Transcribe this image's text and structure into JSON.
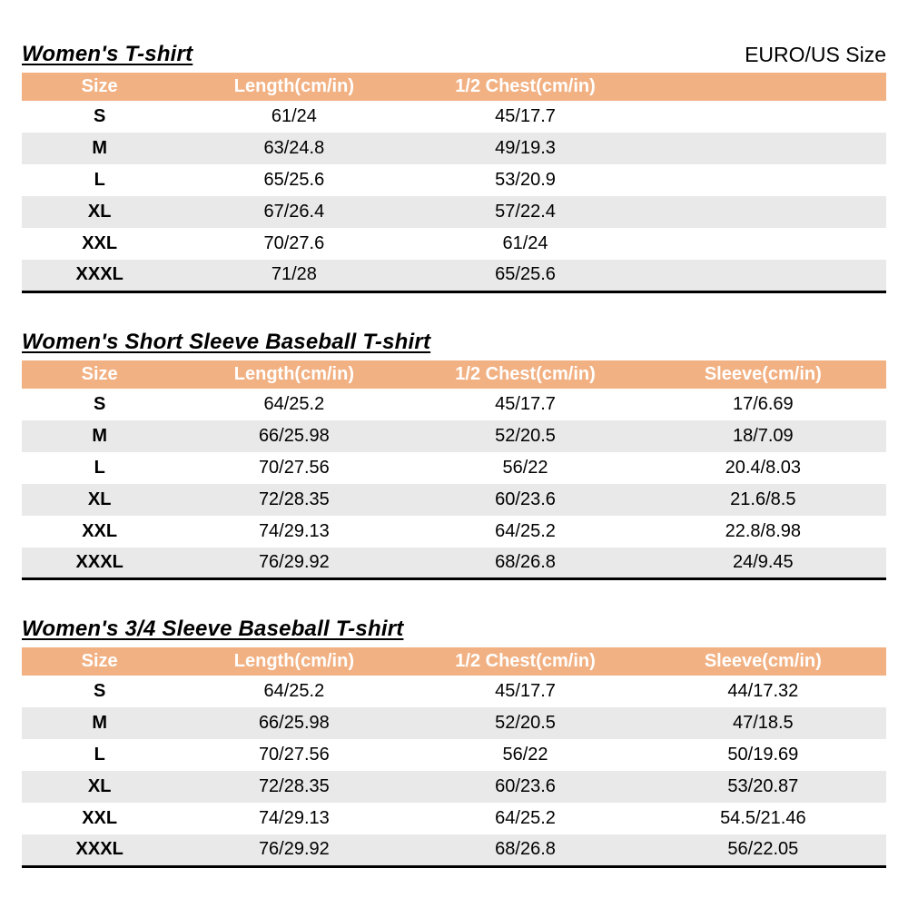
{
  "header": {
    "size_standard": "EURO/US Size"
  },
  "colors": {
    "header_bg": "#F2B183",
    "header_text": "#FFFFFF",
    "alt_row_bg": "#E9E9E9",
    "table_border": "#000000"
  },
  "tables": [
    {
      "title": "Women's T-shirt",
      "columns": [
        "Size",
        "Length(cm/in)",
        "1/2 Chest(cm/in)",
        ""
      ],
      "rows": [
        [
          "S",
          "61/24",
          "45/17.7",
          ""
        ],
        [
          "M",
          "63/24.8",
          "49/19.3",
          ""
        ],
        [
          "L",
          "65/25.6",
          "53/20.9",
          ""
        ],
        [
          "XL",
          "67/26.4",
          "57/22.4",
          ""
        ],
        [
          "XXL",
          "70/27.6",
          "61/24",
          ""
        ],
        [
          "XXXL",
          "71/28",
          "65/25.6",
          ""
        ]
      ]
    },
    {
      "title": "Women's Short Sleeve Baseball T-shirt",
      "columns": [
        "Size",
        "Length(cm/in)",
        "1/2 Chest(cm/in)",
        "Sleeve(cm/in)"
      ],
      "rows": [
        [
          "S",
          "64/25.2",
          "45/17.7",
          "17/6.69"
        ],
        [
          "M",
          "66/25.98",
          "52/20.5",
          "18/7.09"
        ],
        [
          "L",
          "70/27.56",
          "56/22",
          "20.4/8.03"
        ],
        [
          "XL",
          "72/28.35",
          "60/23.6",
          "21.6/8.5"
        ],
        [
          "XXL",
          "74/29.13",
          "64/25.2",
          "22.8/8.98"
        ],
        [
          "XXXL",
          "76/29.92",
          "68/26.8",
          "24/9.45"
        ]
      ]
    },
    {
      "title": "Women's 3/4 Sleeve Baseball T-shirt",
      "columns": [
        "Size",
        "Length(cm/in)",
        "1/2 Chest(cm/in)",
        "Sleeve(cm/in)"
      ],
      "rows": [
        [
          "S",
          "64/25.2",
          "45/17.7",
          "44/17.32"
        ],
        [
          "M",
          "66/25.98",
          "52/20.5",
          "47/18.5"
        ],
        [
          "L",
          "70/27.56",
          "56/22",
          "50/19.69"
        ],
        [
          "XL",
          "72/28.35",
          "60/23.6",
          "53/20.87"
        ],
        [
          "XXL",
          "74/29.13",
          "64/25.2",
          "54.5/21.46"
        ],
        [
          "XXXL",
          "76/29.92",
          "68/26.8",
          "56/22.05"
        ]
      ]
    }
  ]
}
